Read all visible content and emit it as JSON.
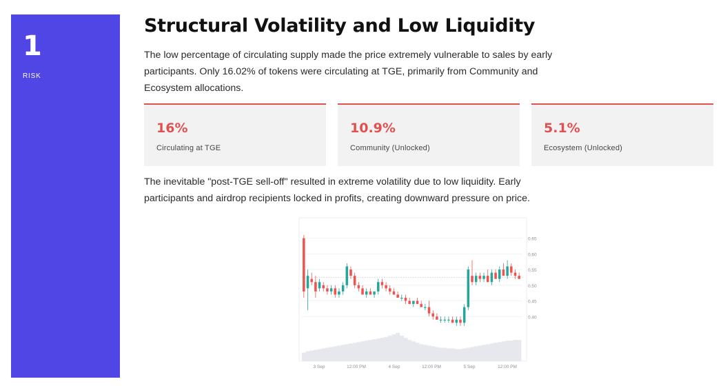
{
  "side": {
    "number": "1",
    "label": "RISK"
  },
  "title": "Structural Volatility and Low Liquidity",
  "intro": "The low percentage of circulating supply made the price extremely vulnerable to sales by early participants. Only 16.02% of tokens were circulating at TGE, primarily from Community and Ecosystem allocations.",
  "stats": [
    {
      "value": "16%",
      "label": "Circulating at TGE"
    },
    {
      "value": "10.9%",
      "label": "Community (Unlocked)"
    },
    {
      "value": "5.1%",
      "label": "Ecosystem (Unlocked)"
    }
  ],
  "body": "The inevitable \"post-TGE sell-off\" resulted in extreme volatility due to low liquidity. Early participants and airdrop recipients locked in profits, creating downward pressure on price.",
  "colors": {
    "accent": "#5046e5",
    "stat": "#e0504f",
    "up": "#26a69a",
    "down": "#ef5350",
    "volume": "#e7e8ee"
  },
  "chart_data": {
    "type": "candlestick",
    "title": "",
    "ylim": [
      0.35,
      0.68
    ],
    "y_ticks": [
      0.4,
      0.45,
      0.5,
      0.55,
      0.6,
      0.65
    ],
    "y_tick_labels": [
      "0.40",
      "0.45",
      "0.50",
      "0.55",
      "0.60",
      "0.65"
    ],
    "x_tick_labels": [
      "3 Sep",
      "12:00 PM",
      "4 Sep",
      "12:00 PM",
      "5 Sep",
      "12:00 PM"
    ],
    "reference_line": 0.525,
    "candles": [
      [
        0.65,
        0.66,
        0.46,
        0.48
      ],
      [
        0.49,
        0.55,
        0.42,
        0.53
      ],
      [
        0.52,
        0.54,
        0.5,
        0.51
      ],
      [
        0.51,
        0.53,
        0.46,
        0.48
      ],
      [
        0.49,
        0.52,
        0.48,
        0.51
      ],
      [
        0.5,
        0.51,
        0.48,
        0.49
      ],
      [
        0.49,
        0.5,
        0.47,
        0.48
      ],
      [
        0.48,
        0.5,
        0.47,
        0.49
      ],
      [
        0.49,
        0.5,
        0.46,
        0.47
      ],
      [
        0.47,
        0.49,
        0.46,
        0.48
      ],
      [
        0.48,
        0.51,
        0.47,
        0.5
      ],
      [
        0.5,
        0.57,
        0.49,
        0.56
      ],
      [
        0.55,
        0.56,
        0.52,
        0.53
      ],
      [
        0.53,
        0.54,
        0.49,
        0.5
      ],
      [
        0.5,
        0.51,
        0.48,
        0.49
      ],
      [
        0.49,
        0.5,
        0.47,
        0.47
      ],
      [
        0.47,
        0.49,
        0.46,
        0.48
      ],
      [
        0.48,
        0.49,
        0.47,
        0.47
      ],
      [
        0.47,
        0.48,
        0.46,
        0.48
      ],
      [
        0.48,
        0.52,
        0.47,
        0.51
      ],
      [
        0.51,
        0.52,
        0.49,
        0.5
      ],
      [
        0.5,
        0.51,
        0.48,
        0.49
      ],
      [
        0.49,
        0.5,
        0.47,
        0.48
      ],
      [
        0.48,
        0.49,
        0.47,
        0.47
      ],
      [
        0.47,
        0.48,
        0.46,
        0.46
      ],
      [
        0.46,
        0.47,
        0.45,
        0.46
      ],
      [
        0.46,
        0.47,
        0.44,
        0.45
      ],
      [
        0.45,
        0.46,
        0.44,
        0.44
      ],
      [
        0.44,
        0.45,
        0.43,
        0.45
      ],
      [
        0.45,
        0.46,
        0.44,
        0.44
      ],
      [
        0.44,
        0.45,
        0.43,
        0.43
      ],
      [
        0.43,
        0.44,
        0.42,
        0.43
      ],
      [
        0.43,
        0.45,
        0.4,
        0.41
      ],
      [
        0.41,
        0.42,
        0.39,
        0.4
      ],
      [
        0.4,
        0.41,
        0.39,
        0.39
      ],
      [
        0.39,
        0.4,
        0.38,
        0.39
      ],
      [
        0.39,
        0.4,
        0.38,
        0.39
      ],
      [
        0.39,
        0.4,
        0.38,
        0.39
      ],
      [
        0.39,
        0.4,
        0.38,
        0.38
      ],
      [
        0.38,
        0.4,
        0.37,
        0.39
      ],
      [
        0.39,
        0.4,
        0.37,
        0.38
      ],
      [
        0.38,
        0.44,
        0.37,
        0.43
      ],
      [
        0.43,
        0.56,
        0.42,
        0.55
      ],
      [
        0.53,
        0.58,
        0.5,
        0.51
      ],
      [
        0.51,
        0.54,
        0.5,
        0.53
      ],
      [
        0.53,
        0.54,
        0.51,
        0.52
      ],
      [
        0.52,
        0.54,
        0.51,
        0.53
      ],
      [
        0.53,
        0.55,
        0.51,
        0.51
      ],
      [
        0.51,
        0.55,
        0.5,
        0.54
      ],
      [
        0.54,
        0.55,
        0.52,
        0.52
      ],
      [
        0.52,
        0.56,
        0.51,
        0.55
      ],
      [
        0.55,
        0.57,
        0.53,
        0.53
      ],
      [
        0.53,
        0.58,
        0.52,
        0.56
      ],
      [
        0.56,
        0.57,
        0.53,
        0.54
      ],
      [
        0.54,
        0.55,
        0.52,
        0.53
      ],
      [
        0.53,
        0.54,
        0.52,
        0.52
      ]
    ],
    "volume": [
      12,
      14,
      15,
      16,
      17,
      18,
      19,
      20,
      21,
      22,
      23,
      24,
      25,
      26,
      27,
      28,
      29,
      30,
      31,
      32,
      33,
      34,
      36,
      38,
      40,
      36,
      33,
      30,
      28,
      26,
      24,
      23,
      22,
      21,
      20,
      19,
      19,
      18,
      18,
      17,
      17,
      18,
      19,
      20,
      21,
      22,
      23,
      24,
      25,
      26,
      27,
      28,
      29,
      29,
      30,
      30
    ]
  }
}
